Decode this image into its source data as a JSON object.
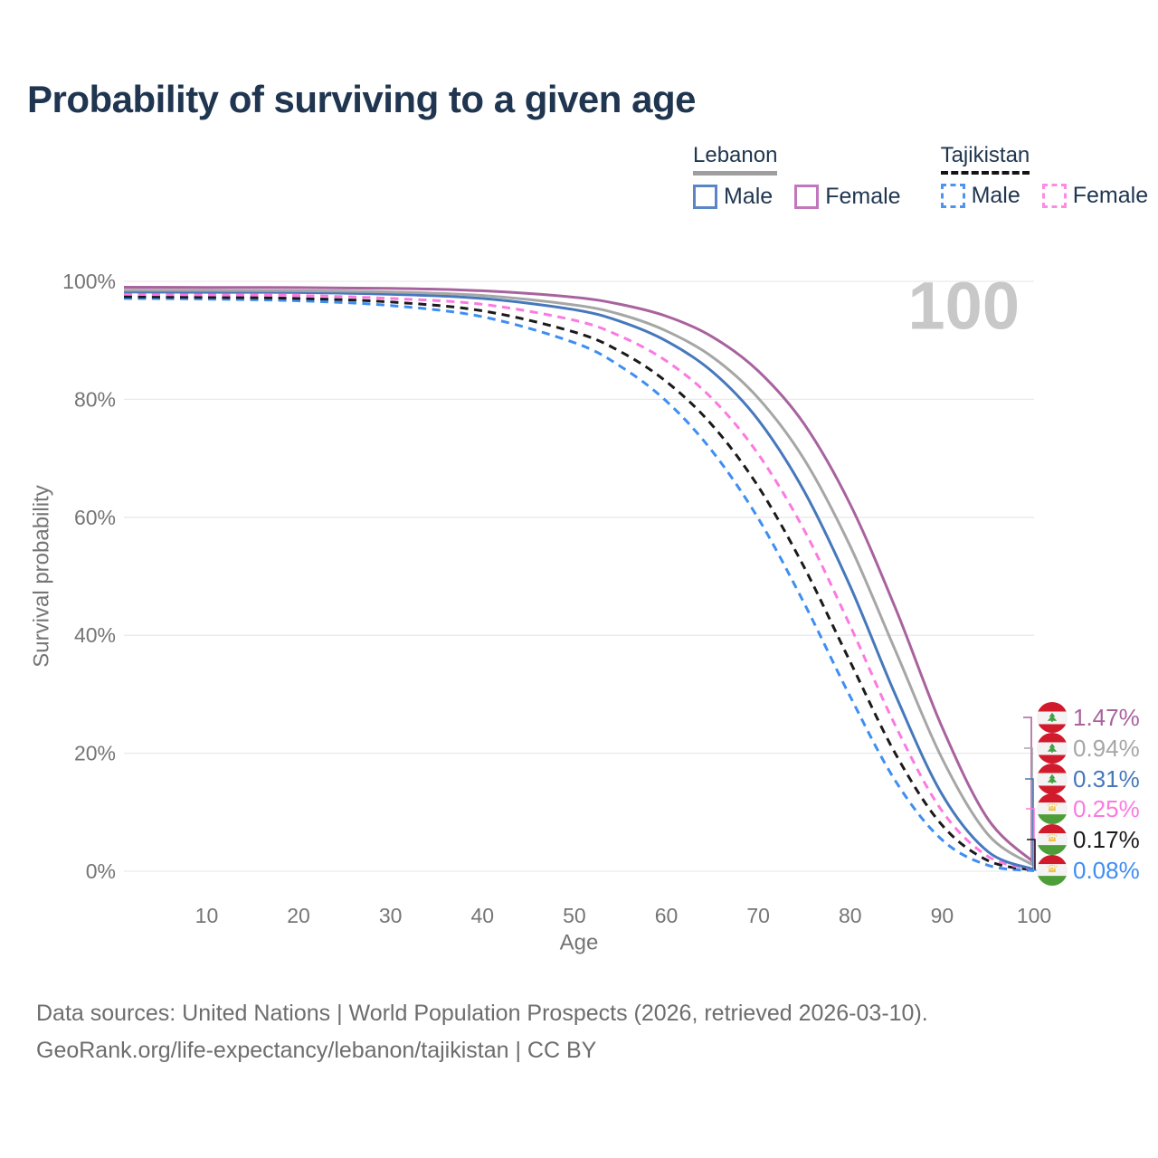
{
  "title": "Probability of surviving to a given age",
  "watermark": "100",
  "legend": {
    "groups": [
      {
        "label": "Lebanon",
        "rule_style": "solid",
        "rule_color": "#9e9e9e",
        "items": [
          {
            "label": "Male",
            "color": "#5b86c6",
            "dash": false
          },
          {
            "label": "Female",
            "color": "#c277bd",
            "dash": false
          }
        ]
      },
      {
        "label": "Tajikistan",
        "rule_style": "dashed",
        "rule_color": "#141414",
        "items": [
          {
            "label": "Male",
            "color": "#4d94f2",
            "dash": true
          },
          {
            "label": "Female",
            "color": "#fc8ae6",
            "dash": true
          }
        ]
      }
    ]
  },
  "chart_data": {
    "type": "line",
    "title": "Probability of surviving to a given age",
    "xlabel": "Age",
    "ylabel": "Survival probability",
    "xlim": [
      1,
      100
    ],
    "ylim": [
      0,
      100
    ],
    "grid": true,
    "legend_position": "top-right",
    "x_ticks": [
      10,
      20,
      30,
      40,
      50,
      60,
      70,
      80,
      90,
      100
    ],
    "y_ticks": [
      {
        "v": 0,
        "label": "0%"
      },
      {
        "v": 20,
        "label": "20%"
      },
      {
        "v": 40,
        "label": "40%"
      },
      {
        "v": 60,
        "label": "60%"
      },
      {
        "v": 80,
        "label": "80%"
      },
      {
        "v": 100,
        "label": "100%"
      }
    ],
    "x": [
      1,
      10,
      20,
      30,
      40,
      50,
      55,
      60,
      65,
      70,
      75,
      80,
      85,
      90,
      95,
      100
    ],
    "series": [
      {
        "name": "Lebanon Female",
        "country": "Lebanon",
        "sex": "Female",
        "color": "#a8639f",
        "dashed": false,
        "flag": "lebanon",
        "end_label": "1.47%",
        "end_value": 1.47,
        "values": [
          99.0,
          98.98,
          98.94,
          98.8,
          98.4,
          97.3,
          96.1,
          94.1,
          90.6,
          84.8,
          75.8,
          62.2,
          44.3,
          24.4,
          8.8,
          1.47
        ]
      },
      {
        "name": "Lebanon Both sexes",
        "country": "Lebanon",
        "sex": "Both",
        "color": "#a6a6a6",
        "dashed": false,
        "flag": "lebanon",
        "end_label": "0.94%",
        "end_value": 0.94,
        "values": [
          98.5,
          98.46,
          98.4,
          98.2,
          97.6,
          96.0,
          94.4,
          91.6,
          87.2,
          80.2,
          69.8,
          55.1,
          37.1,
          19.1,
          6.2,
          0.94
        ]
      },
      {
        "name": "Lebanon Male",
        "country": "Lebanon",
        "sex": "Male",
        "color": "#4678bc",
        "dashed": false,
        "flag": "lebanon",
        "end_label": "0.31%",
        "end_value": 0.31,
        "values": [
          98.2,
          98.15,
          98.1,
          97.8,
          97.1,
          95.2,
          93.2,
          89.9,
          84.7,
          76.5,
          64.4,
          48.3,
          29.6,
          13.0,
          3.3,
          0.31
        ]
      },
      {
        "name": "Tajikistan Female",
        "country": "Tajikistan",
        "sex": "Female",
        "color": "#fb7ae1",
        "dashed": true,
        "flag": "tajikistan",
        "end_label": "0.25%",
        "end_value": 0.25,
        "values": [
          97.8,
          97.7,
          97.6,
          97.1,
          96.1,
          93.4,
          90.7,
          86.5,
          80.1,
          70.7,
          57.8,
          41.6,
          24.4,
          10.2,
          2.5,
          0.25
        ]
      },
      {
        "name": "Tajikistan Both sexes",
        "country": "Tajikistan",
        "sex": "Both",
        "color": "#1a1a1a",
        "dashed": true,
        "flag": "tajikistan",
        "end_label": "0.17%",
        "end_value": 0.17,
        "values": [
          97.4,
          97.3,
          97.1,
          96.5,
          95.0,
          91.4,
          88.1,
          83.0,
          75.6,
          65.2,
          51.5,
          35.5,
          19.7,
          7.8,
          1.8,
          0.17
        ]
      },
      {
        "name": "Tajikistan Male",
        "country": "Tajikistan",
        "sex": "Male",
        "color": "#3e8ef2",
        "dashed": true,
        "flag": "tajikistan",
        "end_label": "0.08%",
        "end_value": 0.08,
        "values": [
          97.1,
          97.0,
          96.7,
          95.9,
          94.0,
          89.6,
          85.6,
          79.7,
          71.2,
          59.8,
          45.4,
          29.6,
          15.1,
          5.3,
          1.0,
          0.08
        ]
      }
    ],
    "style": {
      "grid_color": "#e9e9e9",
      "axis_text_color": "#757575",
      "watermark_color": "#c8c8c8"
    }
  },
  "flags": {
    "lebanon": {
      "red": "#d11a2c",
      "white": "#f4f2f3",
      "green": "#43a047"
    },
    "tajikistan": {
      "red": "#d11a2c",
      "white": "#f4f2f3",
      "green": "#4d9e38",
      "gold": "#f0c440"
    }
  },
  "footer": {
    "line1": "Data sources: United Nations | World Population Prospects (2026, retrieved 2026-03-10).",
    "line2": "GeoRank.org/life-expectancy/lebanon/tajikistan | CC BY"
  }
}
